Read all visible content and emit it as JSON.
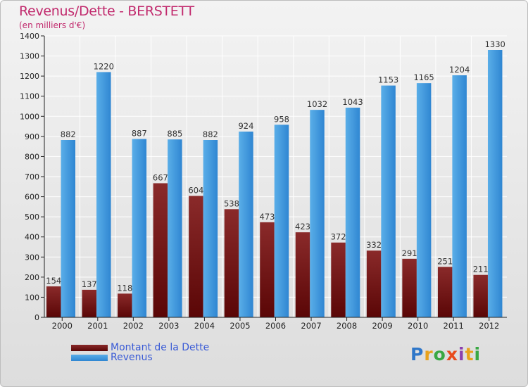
{
  "title": "Revenus/Dette - BERSTETT",
  "subtitle": "(en milliers d'€)",
  "brand": {
    "letters": [
      "P",
      "r",
      "o",
      "x",
      "i",
      "t",
      "i"
    ],
    "colors": [
      "#2f77c9",
      "#e8a21c",
      "#3aa843",
      "#e84b1c",
      "#8b3fae",
      "#e8a21c",
      "#3aa843"
    ]
  },
  "colors": {
    "dette_top": "#8a2a2a",
    "dette_bottom": "#5a0606",
    "revenus_light": "#5aaee8",
    "revenus_dark": "#2f86d2",
    "axis": "#222222",
    "grid": "#ffffff"
  },
  "chart_data": {
    "type": "bar",
    "title": "Revenus/Dette - BERSTETT",
    "ylabel": "(en milliers d'€)",
    "xlabel": "",
    "categories": [
      "2000",
      "2001",
      "2002",
      "2003",
      "2004",
      "2005",
      "2006",
      "2007",
      "2008",
      "2009",
      "2010",
      "2011",
      "2012"
    ],
    "series": [
      {
        "name": "Montant de la Dette",
        "values": [
          154,
          137,
          118,
          667,
          604,
          538,
          473,
          423,
          372,
          332,
          291,
          251,
          211
        ]
      },
      {
        "name": "Revenus",
        "values": [
          882,
          1220,
          887,
          885,
          882,
          924,
          958,
          1032,
          1043,
          1153,
          1165,
          1204,
          1330
        ]
      }
    ],
    "ylim": [
      0,
      1400
    ],
    "yticks": [
      0,
      100,
      200,
      300,
      400,
      500,
      600,
      700,
      800,
      900,
      1000,
      1100,
      1200,
      1300,
      1400
    ],
    "grid": true,
    "legend": "bottom-left"
  }
}
